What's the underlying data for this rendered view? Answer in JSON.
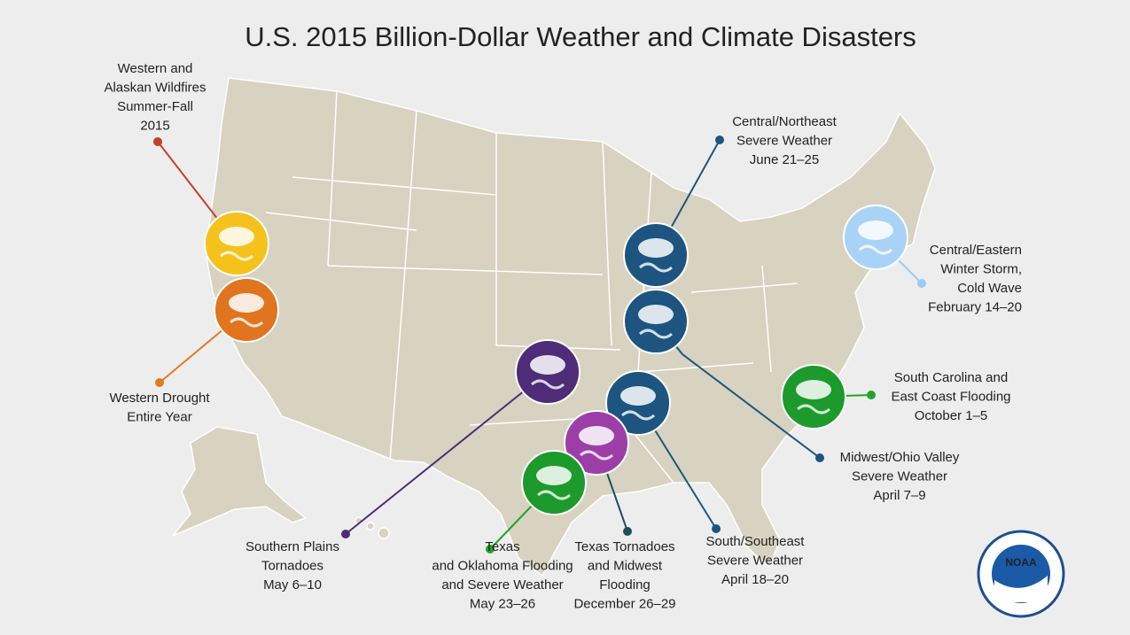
{
  "title": "U.S. 2015 Billion-Dollar Weather and Climate Disasters",
  "events": [
    {
      "lines": [
        "Western and",
        "Alaskan Wildfires",
        "Summer-Fall",
        "2015"
      ],
      "color": "#c2402a",
      "icon_color": "#f5c21b"
    },
    {
      "lines": [
        "Western Drought",
        "Entire Year"
      ],
      "color": "#e07b22",
      "icon_color": "#e0741f"
    },
    {
      "lines": [
        "Central/Northeast",
        "Severe Weather",
        "June 21–25"
      ],
      "color": "#1d5580",
      "icon_color": "#1d5580"
    },
    {
      "lines": [
        "Central/Eastern",
        "Winter Storm,",
        "Cold Wave",
        "February 14–20"
      ],
      "color": "#9ccaf2",
      "icon_color": "#a8d3f6"
    },
    {
      "lines": [
        "South Carolina and",
        "East Coast Flooding",
        "October 1–5"
      ],
      "color": "#22a32f",
      "icon_color": "#1c9a2b"
    },
    {
      "lines": [
        "Midwest/Ohio Valley",
        "Severe Weather",
        "April 7–9"
      ],
      "color": "#1d5580",
      "icon_color": "#1d5580"
    },
    {
      "lines": [
        "South/Southeast",
        "Severe Weather",
        "April 18–20"
      ],
      "color": "#1d5580",
      "icon_color": "#1d5580"
    },
    {
      "lines": [
        "Texas Tornadoes",
        "and Midwest",
        "Flooding",
        "December 26–29"
      ],
      "color": "#1d4f5e",
      "icon_color": "#9b3fa6"
    },
    {
      "lines": [
        "Texas",
        "and Oklahoma Flooding",
        "and Severe Weather",
        "May 23–26"
      ],
      "color": "#22a32f",
      "icon_color": "#1c9a2b"
    },
    {
      "lines": [
        "Southern Plains",
        "Tornadoes",
        "May 6–10"
      ],
      "color": "#4e2c78",
      "icon_color": "#4e2c78"
    }
  ],
  "logo_text": "NOAA"
}
